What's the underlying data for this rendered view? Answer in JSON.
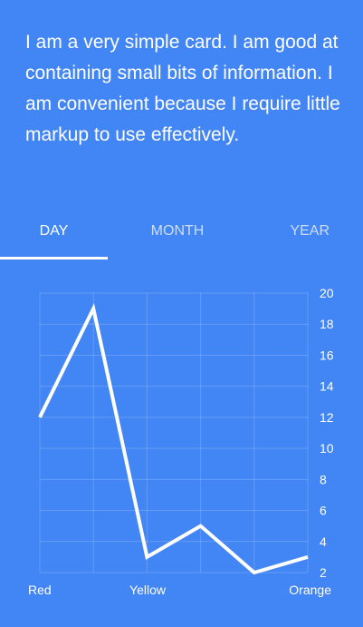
{
  "card": {
    "text": "I am a very simple card. I am good at containing small bits of information. I am convenient because I require little markup to use effectively."
  },
  "tabs": [
    {
      "label": "DAY",
      "active": true
    },
    {
      "label": "MONTH",
      "active": false
    },
    {
      "label": "YEAR",
      "active": false
    }
  ],
  "colors": {
    "background": "#4285f4",
    "line": "#ffffff",
    "grid": "rgba(255,255,255,0.18)"
  },
  "chart_data": {
    "type": "line",
    "x_tick_labels": [
      "Red",
      "Yellow",
      "Orange"
    ],
    "y_ticks": [
      2,
      4,
      6,
      8,
      10,
      12,
      14,
      16,
      18,
      20
    ],
    "ylim": [
      2,
      20
    ],
    "values": [
      12,
      19,
      3,
      5,
      2,
      3
    ],
    "grid": true
  }
}
